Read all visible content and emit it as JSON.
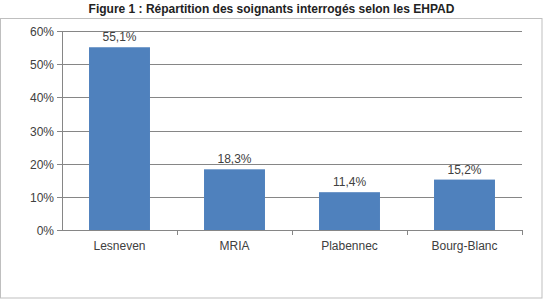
{
  "chart_data": {
    "type": "bar",
    "title": "Figure 1 : Répartition des soignants interrogés selon les EHPAD",
    "categories": [
      "Lesneven",
      "MRIA",
      "Plabennec",
      "Bourg-Blanc"
    ],
    "values": [
      55.1,
      18.3,
      11.4,
      15.2
    ],
    "value_labels": [
      "55,1%",
      "18,3%",
      "11,4%",
      "15,2%"
    ],
    "color": "#4f81bd",
    "ylim": [
      0,
      60
    ],
    "yticks": [
      {
        "value": 0,
        "label": "0%"
      },
      {
        "value": 10,
        "label": "10%"
      },
      {
        "value": 20,
        "label": "20%"
      },
      {
        "value": 30,
        "label": "30%"
      },
      {
        "value": 40,
        "label": "40%"
      },
      {
        "value": 50,
        "label": "50%"
      },
      {
        "value": 60,
        "label": "60%"
      }
    ],
    "grid": true,
    "data_labels": true
  }
}
